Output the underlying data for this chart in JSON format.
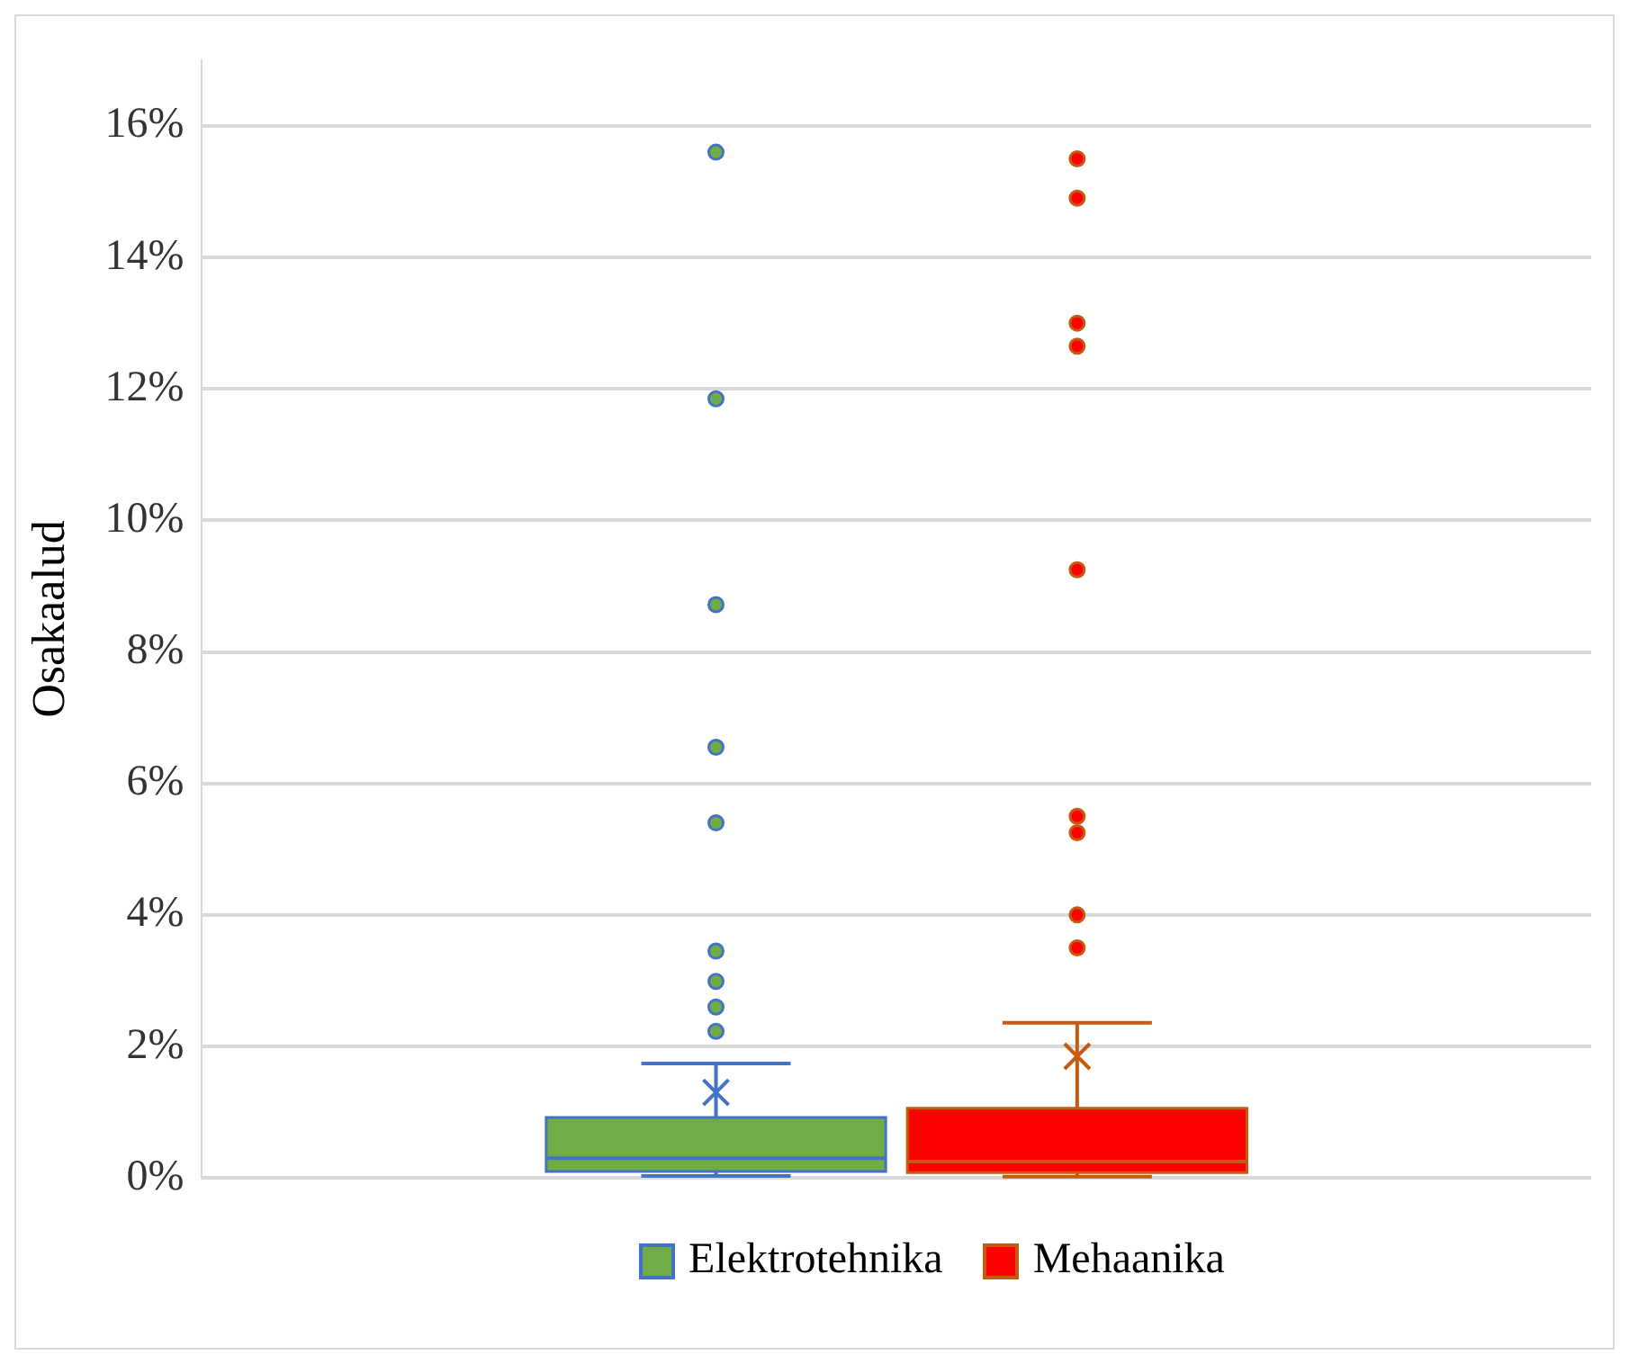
{
  "chart_data": {
    "type": "box",
    "ylabel": "Osakaalud",
    "categories": [
      null
    ],
    "ylim": [
      0,
      17
    ],
    "yticks": [
      {
        "value": 0,
        "label": "0%"
      },
      {
        "value": 2,
        "label": "2%"
      },
      {
        "value": 4,
        "label": "4%"
      },
      {
        "value": 6,
        "label": "6%"
      },
      {
        "value": 8,
        "label": "8%"
      },
      {
        "value": 10,
        "label": "10%"
      },
      {
        "value": 12,
        "label": "12%"
      },
      {
        "value": 14,
        "label": "14%"
      },
      {
        "value": 16,
        "label": "16%"
      }
    ],
    "grid": "y",
    "legend": "bottom",
    "marker": "circle",
    "series": [
      {
        "name": "Elektrotehnika",
        "color": "#70ad47",
        "boxes": [
          {
            "low": 0.03,
            "q1": 0.1,
            "median": 0.3,
            "q3": 0.92,
            "high": 1.74,
            "mean": 1.3,
            "outliers": [
              15.6,
              11.85,
              8.72,
              6.55,
              5.4,
              3.45,
              2.99,
              2.6,
              2.23
            ]
          }
        ]
      },
      {
        "name": "Mehaanika",
        "color": "#ff0000",
        "boxes": [
          {
            "low": 0.02,
            "q1": 0.08,
            "median": 0.25,
            "q3": 1.06,
            "high": 2.36,
            "mean": 1.85,
            "outliers": [
              15.5,
              14.9,
              13.0,
              12.65,
              9.25,
              5.5,
              5.25,
              4.0,
              3.5
            ]
          }
        ]
      }
    ]
  }
}
